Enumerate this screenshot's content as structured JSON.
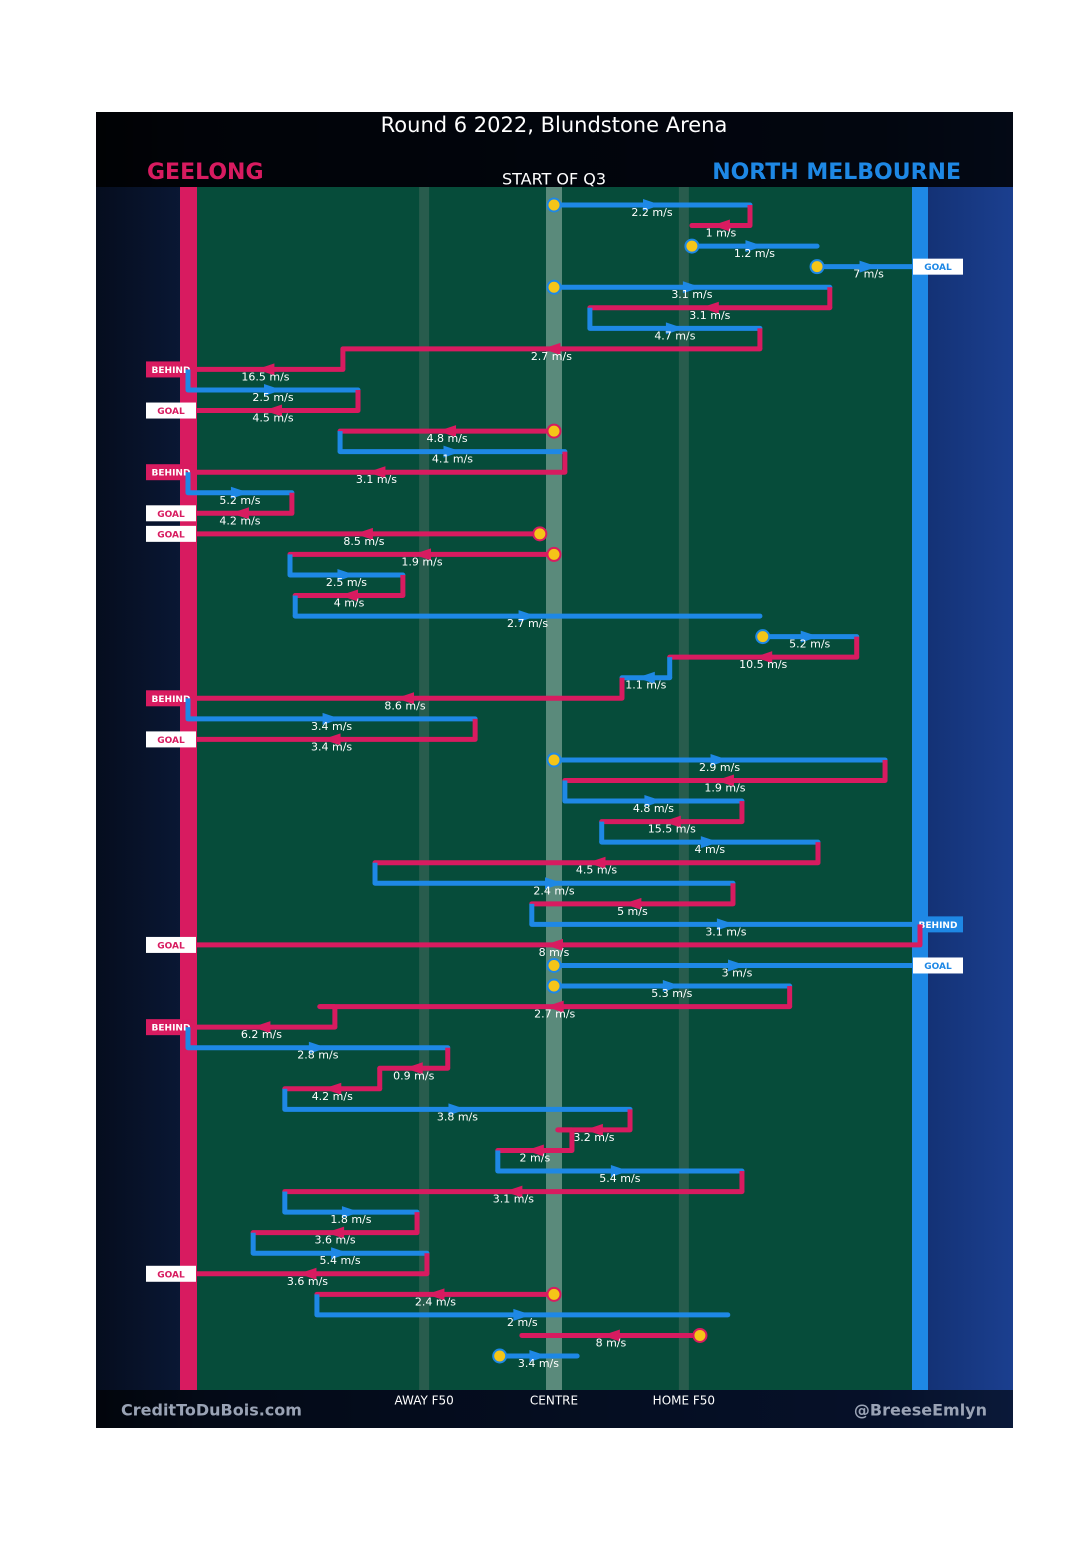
{
  "chart_data": {
    "type": "flow",
    "title": "Round 6 2022, Blundstone Arena",
    "subtitle": "START OF Q3",
    "series": [
      {
        "name": "GEELONG",
        "color": "#d81b60"
      },
      {
        "name": "NORTH MELBOURNE",
        "color": "#1e88e5"
      }
    ],
    "xlim": [
      0,
      155
    ],
    "xticks": [
      {
        "value": 50,
        "label": "AWAY F50"
      },
      {
        "value": 77.5,
        "label": "CENTRE"
      },
      {
        "value": 105,
        "label": "HOME F50"
      }
    ],
    "credit_left": "CreditToDuBois.com",
    "credit_right": "@BreeseEmlyn",
    "segments": [
      {
        "team": 1,
        "from": 77.5,
        "to": 119,
        "value": 2.2,
        "value_label": "2.2 m/s",
        "start": true
      },
      {
        "team": 0,
        "from": 119,
        "to": 106.7,
        "value": 1,
        "value_label": "1 m/s"
      },
      {
        "team": 1,
        "from": 106.7,
        "to": 133.2,
        "value": 1.2,
        "value_label": "1.2 m/s",
        "start": true
      },
      {
        "team": 1,
        "from": 133.2,
        "to": 155,
        "value": 7,
        "value_label": "7 m/s",
        "start": true,
        "result": "GOAL"
      },
      {
        "team": 1,
        "from": 77.5,
        "to": 135.9,
        "value": 3.1,
        "value_label": "3.1 m/s",
        "start": true
      },
      {
        "team": 0,
        "from": 135.9,
        "to": 85.1,
        "value": 3.1,
        "value_label": "3.1 m/s"
      },
      {
        "team": 1,
        "from": 85.1,
        "to": 121.1,
        "value": 4.7,
        "value_label": "4.7 m/s"
      },
      {
        "team": 0,
        "from": 121.1,
        "to": 32.8,
        "value": 2.7,
        "value_label": "2.7 m/s"
      },
      {
        "team": 0,
        "from": 32.8,
        "to": 0,
        "value": 16.5,
        "value_label": "16.5 m/s",
        "result": "BEHIND"
      },
      {
        "team": 1,
        "from": 0,
        "to": 36,
        "value": 2.5,
        "value_label": "2.5 m/s"
      },
      {
        "team": 0,
        "from": 36,
        "to": 0,
        "value": 4.5,
        "value_label": "4.5 m/s",
        "result": "GOAL"
      },
      {
        "team": 0,
        "from": 77.5,
        "to": 32.2,
        "value": 4.8,
        "value_label": "4.8 m/s",
        "start": true
      },
      {
        "team": 1,
        "from": 32.2,
        "to": 79.8,
        "value": 4.1,
        "value_label": "4.1 m/s"
      },
      {
        "team": 0,
        "from": 79.8,
        "to": 0,
        "value": 3.1,
        "value_label": "3.1 m/s",
        "result": "BEHIND"
      },
      {
        "team": 1,
        "from": 0,
        "to": 22,
        "value": 5.2,
        "value_label": "5.2 m/s"
      },
      {
        "team": 0,
        "from": 22,
        "to": 0,
        "value": 4.2,
        "value_label": "4.2 m/s",
        "result": "GOAL"
      },
      {
        "team": 0,
        "from": 74.5,
        "to": 0,
        "value": 8.5,
        "value_label": "8.5 m/s",
        "start": true,
        "result": "GOAL"
      },
      {
        "team": 0,
        "from": 77.5,
        "to": 21.6,
        "value": 1.9,
        "value_label": "1.9 m/s",
        "start": true
      },
      {
        "team": 1,
        "from": 21.6,
        "to": 45.5,
        "value": 2.5,
        "value_label": "2.5 m/s"
      },
      {
        "team": 0,
        "from": 45.5,
        "to": 22.7,
        "value": 4,
        "value_label": "4 m/s"
      },
      {
        "team": 1,
        "from": 22.7,
        "to": 121.1,
        "value": 2.7,
        "value_label": "2.7 m/s"
      },
      {
        "team": 1,
        "from": 121.7,
        "to": 141.6,
        "value": 5.2,
        "value_label": "5.2 m/s",
        "start": true
      },
      {
        "team": 0,
        "from": 141.6,
        "to": 102,
        "value": 10.5,
        "value_label": "10.5 m/s"
      },
      {
        "team": 1,
        "from": 102,
        "to": 91.9,
        "value": 1.1,
        "value_label": "1.1 m/s"
      },
      {
        "team": 0,
        "from": 91.9,
        "to": 0,
        "value": 8.6,
        "value_label": "8.6 m/s",
        "result": "BEHIND"
      },
      {
        "team": 1,
        "from": 0,
        "to": 60.8,
        "value": 3.4,
        "value_label": "3.4 m/s"
      },
      {
        "team": 0,
        "from": 60.8,
        "to": 0,
        "value": 3.4,
        "value_label": "3.4 m/s",
        "result": "GOAL"
      },
      {
        "team": 1,
        "from": 77.5,
        "to": 147.6,
        "value": 2.9,
        "value_label": "2.9 m/s",
        "start": true
      },
      {
        "team": 0,
        "from": 147.6,
        "to": 79.8,
        "value": 1.9,
        "value_label": "1.9 m/s"
      },
      {
        "team": 1,
        "from": 79.8,
        "to": 117.3,
        "value": 4.8,
        "value_label": "4.8 m/s"
      },
      {
        "team": 0,
        "from": 117.3,
        "to": 87.6,
        "value": 15.5,
        "value_label": "15.5 m/s"
      },
      {
        "team": 1,
        "from": 87.6,
        "to": 133.4,
        "value": 4,
        "value_label": "4 m/s"
      },
      {
        "team": 0,
        "from": 133.4,
        "to": 39.6,
        "value": 4.5,
        "value_label": "4.5 m/s"
      },
      {
        "team": 1,
        "from": 39.6,
        "to": 115.4,
        "value": 2.4,
        "value_label": "2.4 m/s"
      },
      {
        "team": 0,
        "from": 115.4,
        "to": 72.8,
        "value": 5,
        "value_label": "5 m/s"
      },
      {
        "team": 1,
        "from": 72.8,
        "to": 155,
        "value": 3.1,
        "value_label": "3.1 m/s",
        "result": "BEHIND"
      },
      {
        "team": 0,
        "from": 155,
        "to": 0,
        "value": 8,
        "value_label": "8 m/s",
        "result": "GOAL"
      },
      {
        "team": 1,
        "from": 77.5,
        "to": 155,
        "value": 3,
        "value_label": "3 m/s",
        "start": true,
        "result": "GOAL"
      },
      {
        "team": 1,
        "from": 77.5,
        "to": 127.4,
        "value": 5.3,
        "value_label": "5.3 m/s",
        "start": true
      },
      {
        "team": 0,
        "from": 127.4,
        "to": 27.9,
        "value": 2.7,
        "value_label": "2.7 m/s"
      },
      {
        "team": 0,
        "from": 31.1,
        "to": 0,
        "value": 6.2,
        "value_label": "6.2 m/s",
        "result": "BEHIND"
      },
      {
        "team": 1,
        "from": 0,
        "to": 55,
        "value": 2.8,
        "value_label": "2.8 m/s"
      },
      {
        "team": 0,
        "from": 55,
        "to": 40.6,
        "value": 0.9,
        "value_label": "0.9 m/s"
      },
      {
        "team": 0,
        "from": 40.6,
        "to": 20.5,
        "value": 4.2,
        "value_label": "4.2 m/s"
      },
      {
        "team": 1,
        "from": 20.5,
        "to": 93.6,
        "value": 3.8,
        "value_label": "3.8 m/s"
      },
      {
        "team": 0,
        "from": 93.6,
        "to": 78.3,
        "value": 3.2,
        "value_label": "3.2 m/s"
      },
      {
        "team": 0,
        "from": 81.3,
        "to": 65.6,
        "value": 2,
        "value_label": "2 m/s"
      },
      {
        "team": 1,
        "from": 65.6,
        "to": 117.3,
        "value": 5.4,
        "value_label": "5.4 m/s"
      },
      {
        "team": 0,
        "from": 117.3,
        "to": 20.5,
        "value": 3.1,
        "value_label": "3.1 m/s"
      },
      {
        "team": 1,
        "from": 20.5,
        "to": 48.5,
        "value": 1.8,
        "value_label": "1.8 m/s"
      },
      {
        "team": 0,
        "from": 48.5,
        "to": 13.8,
        "value": 3.6,
        "value_label": "3.6 m/s"
      },
      {
        "team": 1,
        "from": 13.8,
        "to": 50.6,
        "value": 5.4,
        "value_label": "5.4 m/s"
      },
      {
        "team": 0,
        "from": 50.6,
        "to": 0,
        "value": 3.6,
        "value_label": "3.6 m/s",
        "result": "GOAL"
      },
      {
        "team": 0,
        "from": 77.5,
        "to": 27.3,
        "value": 2.4,
        "value_label": "2.4 m/s",
        "start": true
      },
      {
        "team": 1,
        "from": 27.3,
        "to": 114.3,
        "value": 2,
        "value_label": "2 m/s"
      },
      {
        "team": 0,
        "from": 108.4,
        "to": 70.7,
        "value": 8,
        "value_label": "8 m/s",
        "start": true
      },
      {
        "team": 1,
        "from": 66,
        "to": 82.4,
        "value": 3.4,
        "value_label": "3.4 m/s",
        "start": true
      }
    ]
  }
}
